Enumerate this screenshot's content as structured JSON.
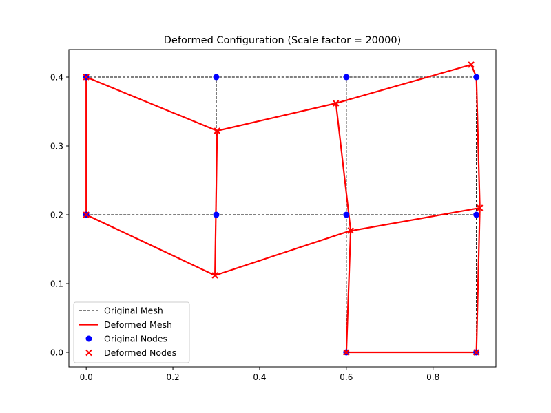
{
  "chart_data": {
    "type": "line",
    "title": "Deformed Configuration (Scale factor = 20000)",
    "xlabel": "",
    "ylabel": "",
    "xlim": [
      -0.04,
      0.945
    ],
    "ylim": [
      -0.021,
      0.44
    ],
    "xticks": [
      0.0,
      0.2,
      0.4,
      0.6,
      0.8
    ],
    "xtick_labels": [
      "0.0",
      "0.2",
      "0.4",
      "0.6",
      "0.8"
    ],
    "yticks": [
      0.0,
      0.1,
      0.2,
      0.3,
      0.4
    ],
    "ytick_labels": [
      "0.0",
      "0.1",
      "0.2",
      "0.3",
      "0.4"
    ],
    "grid": false,
    "legend_position": "lower-left",
    "colors": {
      "original_mesh": "#000000",
      "deformed_mesh": "#ff0000",
      "original_nodes": "#0000ff",
      "deformed_nodes": "#ff0000"
    },
    "series": [
      {
        "name": "Original Mesh",
        "kind": "line",
        "segments": [
          [
            [
              0.0,
              0.2
            ],
            [
              0.3,
              0.2
            ]
          ],
          [
            [
              0.3,
              0.2
            ],
            [
              0.3,
              0.4
            ]
          ],
          [
            [
              0.3,
              0.4
            ],
            [
              0.0,
              0.4
            ]
          ],
          [
            [
              0.0,
              0.4
            ],
            [
              0.0,
              0.2
            ]
          ],
          [
            [
              0.3,
              0.2
            ],
            [
              0.6,
              0.2
            ]
          ],
          [
            [
              0.6,
              0.2
            ],
            [
              0.6,
              0.4
            ]
          ],
          [
            [
              0.6,
              0.4
            ],
            [
              0.3,
              0.4
            ]
          ],
          [
            [
              0.6,
              0.2
            ],
            [
              0.9,
              0.2
            ]
          ],
          [
            [
              0.9,
              0.2
            ],
            [
              0.9,
              0.4
            ]
          ],
          [
            [
              0.9,
              0.4
            ],
            [
              0.6,
              0.4
            ]
          ],
          [
            [
              0.6,
              0.0
            ],
            [
              0.9,
              0.0
            ]
          ],
          [
            [
              0.9,
              0.0
            ],
            [
              0.9,
              0.2
            ]
          ],
          [
            [
              0.6,
              0.2
            ],
            [
              0.6,
              0.0
            ]
          ]
        ]
      },
      {
        "name": "Deformed Mesh",
        "kind": "line",
        "segments": [
          [
            [
              0.0,
              0.2
            ],
            [
              0.297,
              0.112
            ]
          ],
          [
            [
              0.297,
              0.112
            ],
            [
              0.302,
              0.322
            ]
          ],
          [
            [
              0.302,
              0.322
            ],
            [
              0.0,
              0.4
            ]
          ],
          [
            [
              0.0,
              0.4
            ],
            [
              0.0,
              0.2
            ]
          ],
          [
            [
              0.297,
              0.112
            ],
            [
              0.61,
              0.177
            ]
          ],
          [
            [
              0.61,
              0.177
            ],
            [
              0.576,
              0.362
            ]
          ],
          [
            [
              0.576,
              0.362
            ],
            [
              0.302,
              0.322
            ]
          ],
          [
            [
              0.605,
              0.176
            ],
            [
              0.908,
              0.21
            ]
          ],
          [
            [
              0.908,
              0.21
            ],
            [
              0.9,
              0.4
            ]
          ],
          [
            [
              0.9,
              0.4
            ],
            [
              0.888,
              0.418
            ]
          ],
          [
            [
              0.888,
              0.418
            ],
            [
              0.576,
              0.362
            ]
          ],
          [
            [
              0.6,
              0.0
            ],
            [
              0.9,
              0.0
            ]
          ],
          [
            [
              0.9,
              0.0
            ],
            [
              0.908,
              0.21
            ]
          ],
          [
            [
              0.61,
              0.177
            ],
            [
              0.6,
              0.0
            ]
          ]
        ]
      },
      {
        "name": "Original Nodes",
        "kind": "scatter",
        "marker": "circle",
        "points": [
          [
            0.0,
            0.2
          ],
          [
            0.3,
            0.2
          ],
          [
            0.6,
            0.2
          ],
          [
            0.9,
            0.2
          ],
          [
            0.0,
            0.4
          ],
          [
            0.3,
            0.4
          ],
          [
            0.6,
            0.4
          ],
          [
            0.9,
            0.4
          ],
          [
            0.6,
            0.0
          ],
          [
            0.9,
            0.0
          ]
        ]
      },
      {
        "name": "Deformed Nodes",
        "kind": "scatter",
        "marker": "x",
        "points": [
          [
            0.0,
            0.2
          ],
          [
            0.297,
            0.112
          ],
          [
            0.61,
            0.177
          ],
          [
            0.908,
            0.21
          ],
          [
            0.0,
            0.4
          ],
          [
            0.302,
            0.322
          ],
          [
            0.576,
            0.362
          ],
          [
            0.888,
            0.418
          ],
          [
            0.6,
            0.0
          ],
          [
            0.9,
            0.0
          ]
        ]
      }
    ]
  }
}
